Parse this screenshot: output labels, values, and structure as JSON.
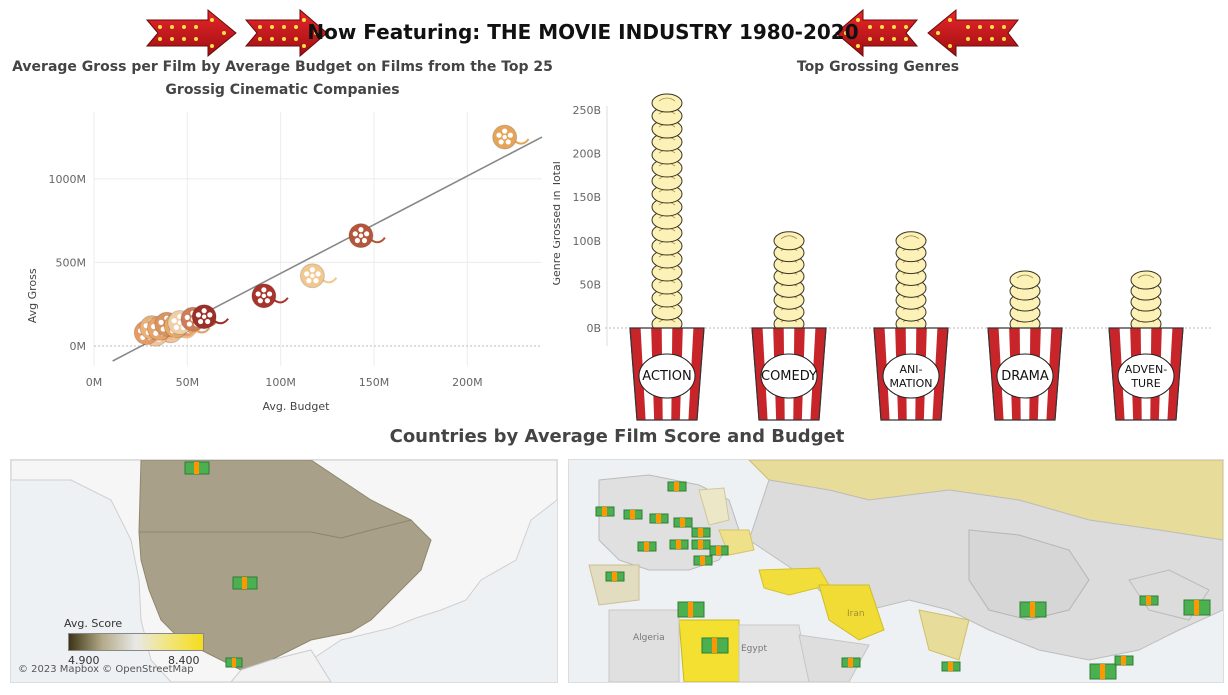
{
  "banner": {
    "title": "Now Featuring: THE MOVIE INDUSTRY 1980-2020"
  },
  "scatter": {
    "title_line1": "Average Gross per Film by Average Budget on Films from the Top 25",
    "title_line2": "Grossig Cinematic Companies"
  },
  "genres_title": "Top Grossing Genres",
  "map": {
    "title": "Countries by Average Film Score and Budget",
    "legend_title": "Avg. Score",
    "legend_min": "4.900",
    "legend_max": "8.400",
    "attribution": "© 2023 Mapbox © OpenStreetMap",
    "labels": {
      "algeria": "Algeria",
      "egypt": "Egypt",
      "iran": "Iran"
    },
    "colors": {
      "low": "#3c3414",
      "mid": "#e8e8e8",
      "high": "#f5dc1c"
    }
  },
  "chart_data": [
    {
      "type": "scatter",
      "title": "Average Gross per Film by Average Budget on Films from the Top 25 Grossig Cinematic Companies",
      "xlabel": "Avg. Budget",
      "ylabel": "Avg Gross",
      "x_ticks": [
        "0M",
        "50M",
        "100M",
        "150M",
        "200M"
      ],
      "y_ticks": [
        "0M",
        "500M",
        "1000M"
      ],
      "xlim": [
        0,
        240
      ],
      "ylim": [
        -120,
        1400
      ],
      "grid": true,
      "trendline": {
        "x": [
          10,
          240
        ],
        "y": [
          -90,
          1250
        ]
      },
      "points": [
        {
          "x": 220,
          "y": 1250,
          "color": "#e4a45a"
        },
        {
          "x": 143,
          "y": 660,
          "color": "#b5563a"
        },
        {
          "x": 117,
          "y": 420,
          "color": "#f0c890"
        },
        {
          "x": 91,
          "y": 300,
          "color": "#a8342c"
        },
        {
          "x": 59,
          "y": 175,
          "color": "#9c2f28"
        },
        {
          "x": 53,
          "y": 160,
          "color": "#cf7d56"
        },
        {
          "x": 46,
          "y": 140,
          "color": "#f0cfa8"
        },
        {
          "x": 44,
          "y": 120,
          "color": "#e8a867"
        },
        {
          "x": 39,
          "y": 130,
          "color": "#d99560"
        },
        {
          "x": 35,
          "y": 105,
          "color": "#e7a46c"
        },
        {
          "x": 31,
          "y": 110,
          "color": "#eab07a"
        },
        {
          "x": 28,
          "y": 80,
          "color": "#e79a64"
        },
        {
          "x": 33,
          "y": 70,
          "color": "#f2c49a"
        },
        {
          "x": 41,
          "y": 90,
          "color": "#efb98a"
        },
        {
          "x": 49,
          "y": 120,
          "color": "#e0a070"
        }
      ]
    },
    {
      "type": "bar",
      "title": "Top Grossing Genres",
      "xlabel": "",
      "ylabel": "Genre Grossed in Total",
      "y_ticks": [
        "0B",
        "50B",
        "100B",
        "150B",
        "200B",
        "250B"
      ],
      "ylim": [
        0,
        250
      ],
      "categories": [
        "ACTION",
        "COMEDY",
        "ANI-\nMATION",
        "DRAMA",
        "ADVEN-\nTURE"
      ],
      "values": [
        258,
        100,
        100,
        55,
        55
      ]
    }
  ]
}
